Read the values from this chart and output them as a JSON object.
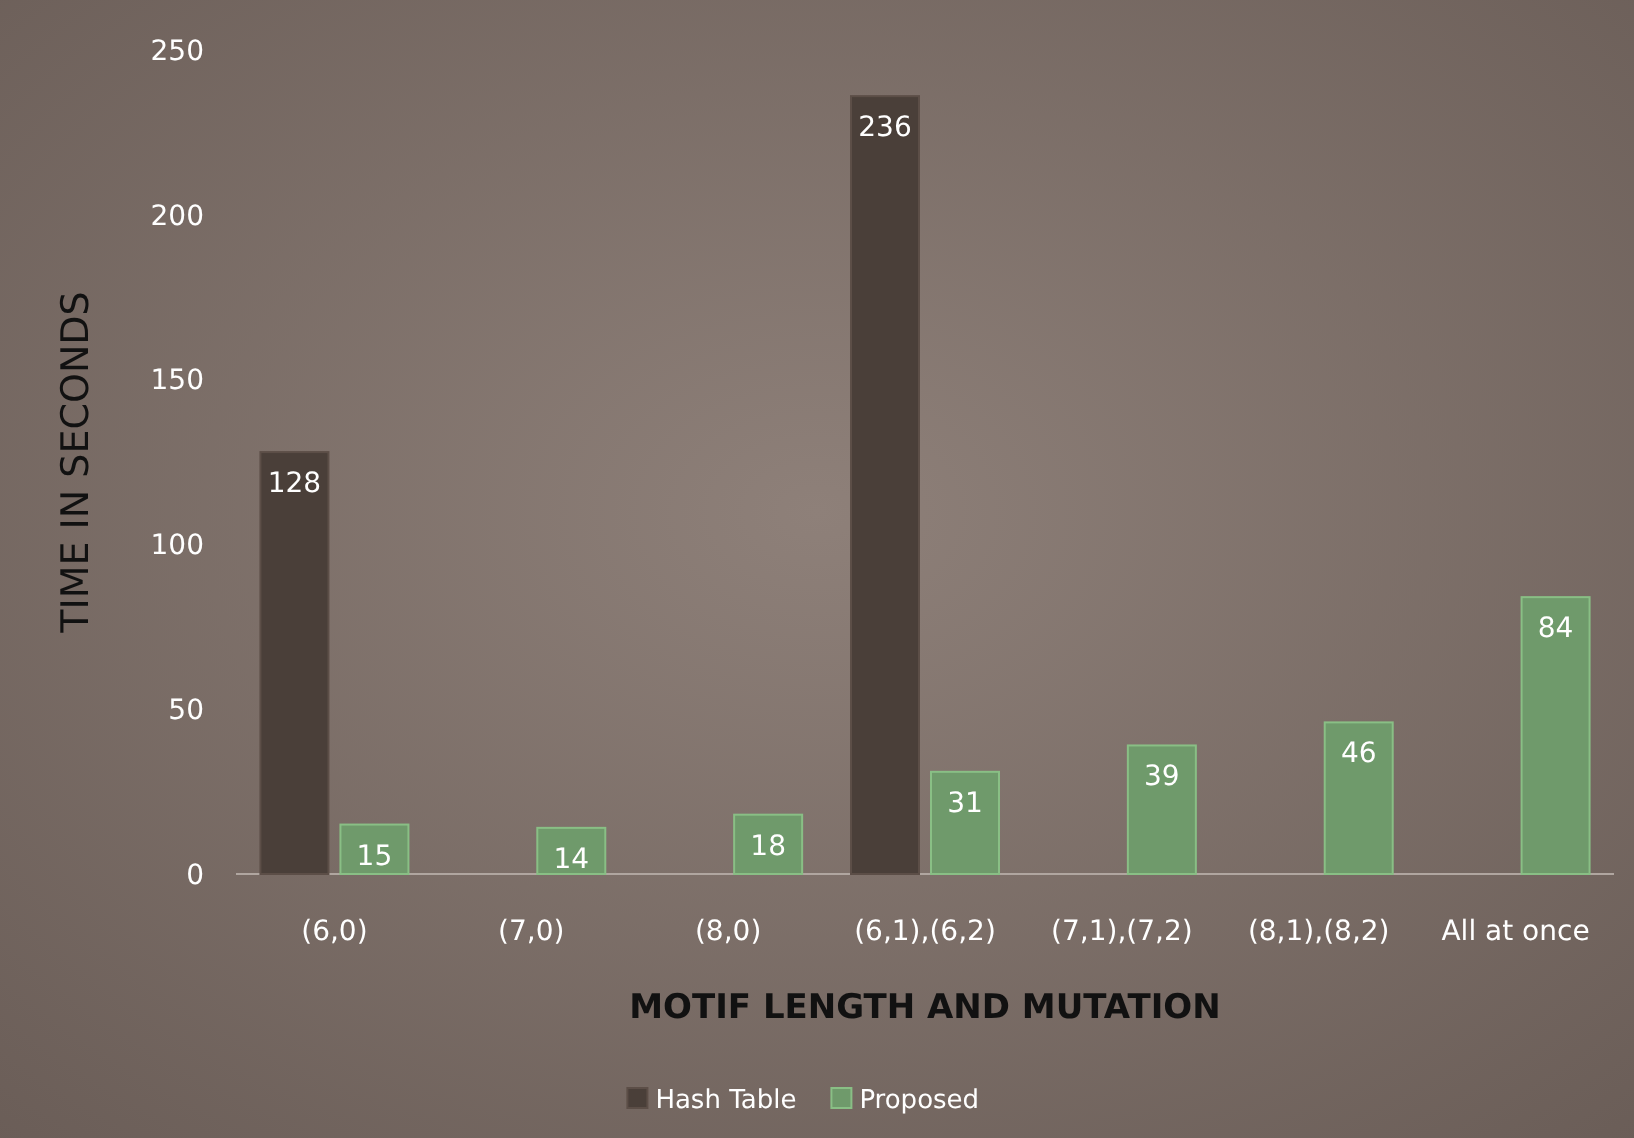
{
  "chart_data": {
    "type": "bar",
    "xlabel": "MOTIF LENGTH AND MUTATION",
    "ylabel": "TIME IN SECONDS",
    "categories": [
      "(6,0)",
      "(7,0)",
      "(8,0)",
      "(6,1),(6,2)",
      "(7,1),(7,2)",
      "(8,1),(8,2)",
      "All at once"
    ],
    "series": [
      {
        "name": "Hash Table",
        "color": "#4a3f39",
        "values": [
          128,
          null,
          null,
          236,
          null,
          null,
          null
        ]
      },
      {
        "name": "Proposed",
        "color": "#6f9a6b",
        "values": [
          15,
          14,
          18,
          31,
          39,
          46,
          84
        ]
      }
    ],
    "ylim": [
      0,
      250
    ],
    "yticks": [
      0,
      50,
      100,
      150,
      200,
      250
    ],
    "grid": false,
    "legend": "bottom",
    "data_labels": true
  }
}
